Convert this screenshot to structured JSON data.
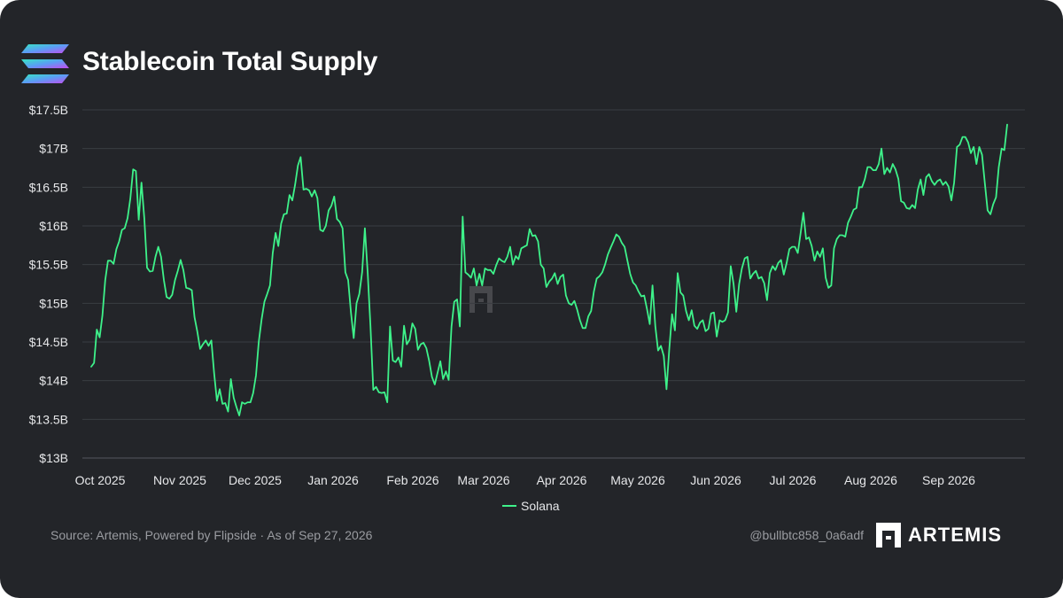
{
  "header": {
    "title": "Stablecoin Total Supply",
    "logo_icon": "solana-logo-icon"
  },
  "chart_data": {
    "type": "line",
    "title": "Stablecoin Total Supply",
    "xlabel": "",
    "ylabel": "",
    "x_tick_labels": [
      "Oct 2025",
      "Nov 2025",
      "Dec 2025",
      "Jan 2026",
      "Feb 2026",
      "Mar 2026",
      "Apr 2026",
      "May 2026",
      "Jun 2026",
      "Jul 2026",
      "Aug 2026",
      "Sep 2026"
    ],
    "y_tick_labels": [
      "$13B",
      "$13.5B",
      "$14B",
      "$14.5B",
      "$15B",
      "$15.5B",
      "$16B",
      "$16.5B",
      "$17B",
      "$17.5B"
    ],
    "y_tick_values": [
      13,
      13.5,
      14,
      14.5,
      15,
      15.5,
      16,
      16.5,
      17,
      17.5
    ],
    "ylim": [
      13,
      17.5
    ],
    "y_unit": "billion USD",
    "grid": true,
    "legend_position": "bottom-center",
    "series": [
      {
        "name": "Solana",
        "color": "#3ef28a",
        "x_start": "2025-09-29",
        "x_end": "2026-09-27",
        "values": [
          14.18,
          14.23,
          14.66,
          14.56,
          14.84,
          15.3,
          15.55,
          15.55,
          15.51,
          15.7,
          15.8,
          15.95,
          15.97,
          16.1,
          16.35,
          16.73,
          16.71,
          16.08,
          16.56,
          16.1,
          15.46,
          15.41,
          15.42,
          15.6,
          15.73,
          15.6,
          15.3,
          15.08,
          15.06,
          15.11,
          15.3,
          15.42,
          15.56,
          15.43,
          15.2,
          15.19,
          15.17,
          14.82,
          14.63,
          14.41,
          14.47,
          14.52,
          14.45,
          14.52,
          14.1,
          13.74,
          13.89,
          13.7,
          13.71,
          13.6,
          14.02,
          13.78,
          13.66,
          13.55,
          13.72,
          13.7,
          13.72,
          13.72,
          13.84,
          14.07,
          14.5,
          14.79,
          15.02,
          15.12,
          15.23,
          15.65,
          15.91,
          15.74,
          16.03,
          16.15,
          16.16,
          16.4,
          16.33,
          16.53,
          16.78,
          16.89,
          16.47,
          16.48,
          16.46,
          16.38,
          16.46,
          16.36,
          15.95,
          15.93,
          16.0,
          16.2,
          16.26,
          16.38,
          16.09,
          16.05,
          15.97,
          15.4,
          15.3,
          14.88,
          14.55,
          15.0,
          15.12,
          15.4,
          15.97,
          15.39,
          14.71,
          13.88,
          13.92,
          13.85,
          13.84,
          13.85,
          13.72,
          14.7,
          14.26,
          14.24,
          14.3,
          14.18,
          14.71,
          14.47,
          14.53,
          14.74,
          14.67,
          14.4,
          14.47,
          14.49,
          14.42,
          14.26,
          14.05,
          13.95,
          14.1,
          14.25,
          14.02,
          14.12,
          14.01,
          14.7,
          15.02,
          15.05,
          14.7,
          16.12,
          15.4,
          15.37,
          15.33,
          15.45,
          15.23,
          15.38,
          15.23,
          15.45,
          15.43,
          15.43,
          15.38,
          15.49,
          15.58,
          15.55,
          15.53,
          15.6,
          15.73,
          15.5,
          15.61,
          15.57,
          15.71,
          15.73,
          15.75,
          15.96,
          15.87,
          15.88,
          15.8,
          15.5,
          15.45,
          15.21,
          15.28,
          15.32,
          15.39,
          15.25,
          15.34,
          15.37,
          15.1,
          15.0,
          14.98,
          15.03,
          14.92,
          14.78,
          14.68,
          14.68,
          14.83,
          14.9,
          15.15,
          15.32,
          15.35,
          15.4,
          15.5,
          15.63,
          15.72,
          15.8,
          15.89,
          15.86,
          15.78,
          15.73,
          15.55,
          15.38,
          15.27,
          15.23,
          15.15,
          15.09,
          15.1,
          14.93,
          14.73,
          15.23,
          14.7,
          14.39,
          14.45,
          14.32,
          13.89,
          14.42,
          14.86,
          14.65,
          15.39,
          15.14,
          15.1,
          14.9,
          14.78,
          14.91,
          14.71,
          14.67,
          14.75,
          14.78,
          14.64,
          14.67,
          14.87,
          14.88,
          14.57,
          14.78,
          14.76,
          14.78,
          14.88,
          15.48,
          15.25,
          14.89,
          15.25,
          15.45,
          15.58,
          15.6,
          15.32,
          15.38,
          15.42,
          15.32,
          15.34,
          15.26,
          15.04,
          15.39,
          15.48,
          15.43,
          15.52,
          15.56,
          15.37,
          15.52,
          15.7,
          15.73,
          15.73,
          15.65,
          15.9,
          16.17,
          15.83,
          15.85,
          15.74,
          15.55,
          15.67,
          15.6,
          15.71,
          15.33,
          15.2,
          15.23,
          15.71,
          15.83,
          15.88,
          15.88,
          15.86,
          16.04,
          16.12,
          16.21,
          16.23,
          16.5,
          16.5,
          16.6,
          16.76,
          16.76,
          16.72,
          16.72,
          16.8,
          17.0,
          16.67,
          16.75,
          16.69,
          16.8,
          16.73,
          16.61,
          16.32,
          16.3,
          16.23,
          16.22,
          16.27,
          16.23,
          16.47,
          16.6,
          16.4,
          16.63,
          16.67,
          16.58,
          16.53,
          16.58,
          16.6,
          16.53,
          16.57,
          16.51,
          16.33,
          16.56,
          17.02,
          17.05,
          17.15,
          17.15,
          17.08,
          16.94,
          17.02,
          16.8,
          17.02,
          16.92,
          16.55,
          16.2,
          16.15,
          16.28,
          16.37,
          16.76,
          17.0,
          16.98,
          17.31
        ]
      }
    ]
  },
  "footer": {
    "source": "Source: Artemis, Powered by Flipside · As of Sep 27, 2026",
    "handle": "@bullbtc858_0a6adf",
    "brand": "ARTEMIS",
    "brand_icon": "artemis-logo-icon"
  }
}
